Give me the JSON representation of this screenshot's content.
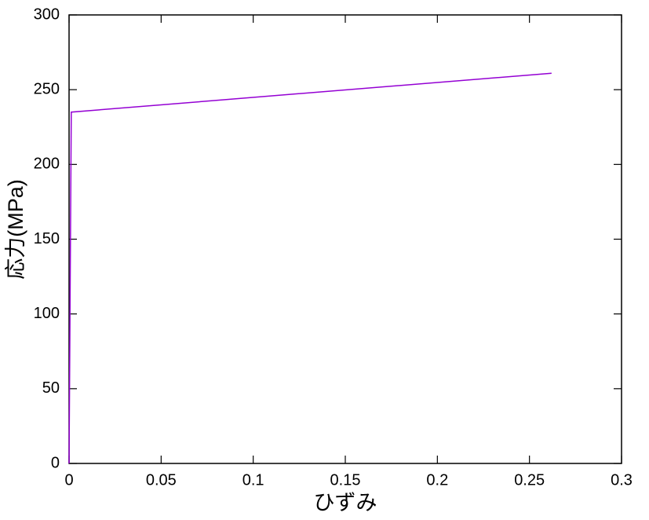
{
  "chart_data": {
    "type": "line",
    "xlabel": "ひずみ",
    "ylabel": "応力(MPa)",
    "x": [
      0,
      0.0012,
      0.262
    ],
    "series": [
      {
        "color": "#9400d3",
        "values": [
          0,
          235,
          261
        ]
      }
    ],
    "xlim": [
      0,
      0.3
    ],
    "xticks": [
      0,
      0.05,
      0.1,
      0.15,
      0.2,
      0.25,
      0.3
    ],
    "ylim": [
      0,
      300
    ],
    "yticks": [
      0,
      50,
      100,
      150,
      200,
      250,
      300
    ],
    "grid": false
  }
}
